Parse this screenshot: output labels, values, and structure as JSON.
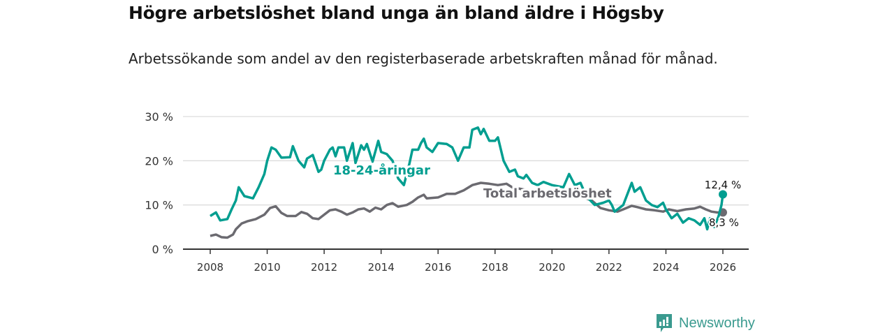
{
  "chart_data": {
    "type": "line",
    "title": "Högre arbetslöshet bland unga än bland äldre i Högsby",
    "subtitle": "Arbetssökande som andel av den registerbaserade arbetskraften månad för månad.",
    "xlabel": "",
    "ylabel": "",
    "xlim": [
      2007.6,
      2026.9
    ],
    "ylim": [
      0,
      30
    ],
    "x_ticks": [
      2008,
      2010,
      2012,
      2014,
      2016,
      2018,
      2020,
      2022,
      2024,
      2026
    ],
    "x_tick_labels": [
      "2008",
      "2010",
      "2012",
      "2014",
      "2016",
      "2018",
      "2020",
      "2022",
      "2024",
      "2026"
    ],
    "y_ticks": [
      0,
      10,
      20,
      30
    ],
    "y_tick_labels": [
      "0 %",
      "10 %",
      "20 %",
      "30 %"
    ],
    "grid": true,
    "series": [
      {
        "name": "18-24-åringar",
        "color": "#009e90",
        "end_label": "12,4 %",
        "x": [
          2008.0,
          2008.2,
          2008.35,
          2008.6,
          2008.75,
          2008.9,
          2009.0,
          2009.2,
          2009.5,
          2009.7,
          2009.9,
          2010.0,
          2010.15,
          2010.3,
          2010.5,
          2010.8,
          2010.9,
          2011.1,
          2011.3,
          2011.4,
          2011.6,
          2011.8,
          2011.9,
          2012.0,
          2012.2,
          2012.3,
          2012.4,
          2012.5,
          2012.7,
          2012.8,
          2013.0,
          2013.1,
          2013.3,
          2013.4,
          2013.5,
          2013.7,
          2013.9,
          2014.0,
          2014.2,
          2014.4,
          2014.6,
          2014.8,
          2015.0,
          2015.1,
          2015.3,
          2015.4,
          2015.5,
          2015.6,
          2015.8,
          2016.0,
          2016.3,
          2016.5,
          2016.7,
          2016.9,
          2017.1,
          2017.2,
          2017.4,
          2017.5,
          2017.6,
          2017.8,
          2018.0,
          2018.1,
          2018.3,
          2018.5,
          2018.7,
          2018.8,
          2019.0,
          2019.1,
          2019.3,
          2019.5,
          2019.7,
          2020.0,
          2020.4,
          2020.6,
          2020.8,
          2021.0,
          2021.2,
          2021.5,
          2021.8,
          2022.0,
          2022.1,
          2022.2,
          2022.5,
          2022.8,
          2022.9,
          2023.1,
          2023.3,
          2023.5,
          2023.7,
          2023.9,
          2024.0,
          2024.2,
          2024.4,
          2024.6,
          2024.8,
          2025.0,
          2025.2,
          2025.35,
          2025.45,
          2025.55,
          2025.7,
          2025.85,
          2025.95,
          2026.0
        ],
        "y": [
          7.5,
          8.3,
          6.5,
          6.8,
          9,
          11,
          14,
          12,
          11.5,
          14,
          17,
          20,
          23,
          22.5,
          20.7,
          20.8,
          23.3,
          20,
          18.5,
          20.5,
          21.3,
          17.5,
          18,
          20,
          22.5,
          23,
          21,
          23,
          23,
          20,
          24,
          19.5,
          23.5,
          22.5,
          23.8,
          19.8,
          24.5,
          22,
          21.5,
          20,
          16,
          14.5,
          19.5,
          22.5,
          22.5,
          24,
          25,
          23,
          22,
          24,
          23.8,
          23,
          20,
          23,
          23,
          27,
          27.5,
          26,
          27.2,
          24.5,
          24.5,
          25.3,
          20,
          17.5,
          18,
          16.5,
          16,
          16.8,
          15,
          14.5,
          15.2,
          14.5,
          14,
          17,
          14.5,
          15,
          12,
          10,
          10.5,
          11,
          10,
          8.5,
          10,
          15,
          13,
          14,
          11,
          10,
          9.5,
          10.5,
          9,
          7,
          8,
          6,
          7,
          6.5,
          5.5,
          7,
          4.5,
          7,
          5,
          7.5,
          10,
          12.4
        ]
      },
      {
        "name": "Total arbetslöshet",
        "color": "#6b6a70",
        "end_label": "8,3 %",
        "x": [
          2008.0,
          2008.2,
          2008.4,
          2008.6,
          2008.8,
          2008.9,
          2009.1,
          2009.3,
          2009.6,
          2009.9,
          2010.1,
          2010.3,
          2010.5,
          2010.7,
          2011.0,
          2011.2,
          2011.4,
          2011.6,
          2011.8,
          2012.0,
          2012.2,
          2012.4,
          2012.6,
          2012.8,
          2013.0,
          2013.2,
          2013.4,
          2013.6,
          2013.8,
          2014.0,
          2014.2,
          2014.4,
          2014.6,
          2014.9,
          2015.1,
          2015.3,
          2015.5,
          2015.6,
          2016.0,
          2016.3,
          2016.6,
          2016.9,
          2017.2,
          2017.5,
          2017.8,
          2018.1,
          2018.4,
          2018.6,
          2019.0,
          2019.5,
          2020.0,
          2020.5,
          2021.0,
          2021.4,
          2021.7,
          2022.0,
          2022.3,
          2022.5,
          2022.8,
          2023.0,
          2023.3,
          2023.6,
          2023.9,
          2024.1,
          2024.4,
          2024.7,
          2025.0,
          2025.2,
          2025.4,
          2025.6,
          2025.8,
          2026.0
        ],
        "y": [
          3,
          3.3,
          2.7,
          2.6,
          3.3,
          4.5,
          5.8,
          6.3,
          6.8,
          7.8,
          9.3,
          9.7,
          8.2,
          7.5,
          7.5,
          8.4,
          8,
          7,
          6.8,
          7.8,
          8.8,
          9,
          8.5,
          7.8,
          8.3,
          9,
          9.2,
          8.5,
          9.4,
          9,
          10,
          10.4,
          9.6,
          10,
          10.7,
          11.7,
          12.3,
          11.5,
          11.7,
          12.5,
          12.5,
          13.3,
          14.5,
          15,
          14.8,
          14.5,
          14.8,
          14,
          13.5,
          13,
          13,
          12.5,
          12,
          11,
          9.3,
          8.8,
          8.5,
          9,
          9.8,
          9.5,
          9,
          8.8,
          8.5,
          9,
          8.6,
          9,
          9.2,
          9.6,
          9,
          8.5,
          8.3,
          8.3
        ]
      }
    ]
  },
  "brand": {
    "name": "Newsworthy"
  }
}
